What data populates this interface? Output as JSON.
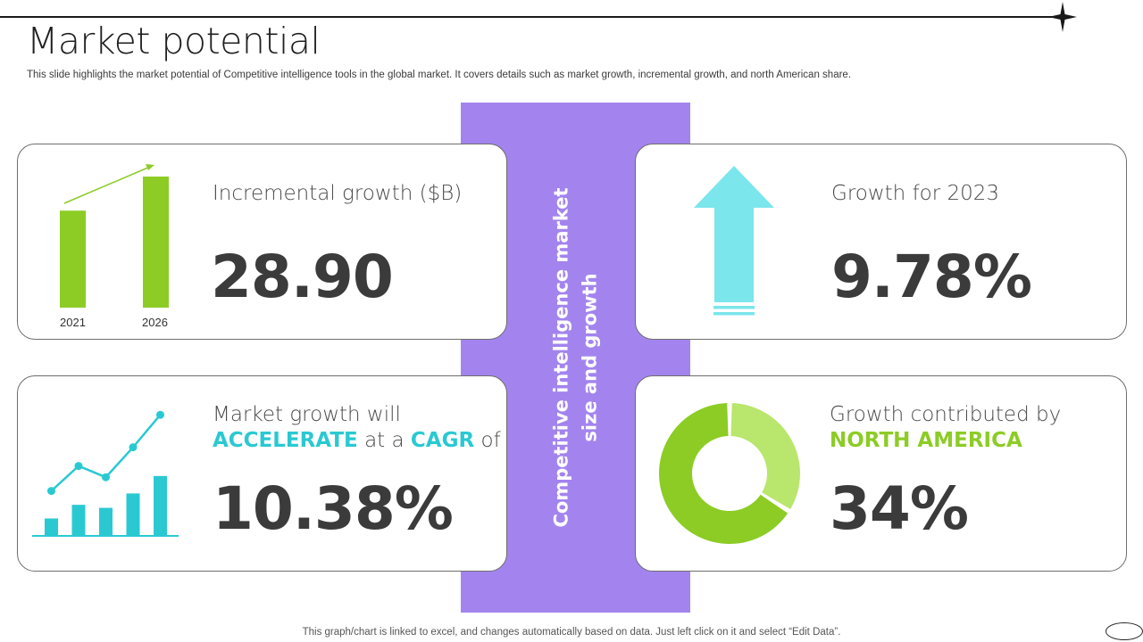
{
  "slide": {
    "title": "Market potential",
    "subtitle": "This slide highlights the market potential of Competitive intelligence tools in the global market. It covers details such as market growth, incremental growth, and north American share.",
    "footer": "This graph/chart is linked to excel,  and changes automatically based on data. Just left click on it and select “Edit Data”."
  },
  "center": {
    "line1": "Competitive intelligence market",
    "line2": "size and growth",
    "color": "#a384ee"
  },
  "incremental": {
    "label": "Incremental growth ($B)",
    "value": "28.90",
    "bar_color": "#8ccc25",
    "chart_data": {
      "type": "bar",
      "categories": [
        "2021",
        "2026"
      ],
      "values": [
        0.74,
        1.0
      ],
      "ylim": [
        0,
        1
      ]
    }
  },
  "growth2023": {
    "label": "Growth for 2023",
    "value": "9.78%",
    "icon": "up-arrow-icon",
    "color": "#7be6ec"
  },
  "cagr": {
    "label_line1": "Market growth will",
    "word_accelerate": "ACCELERATE",
    "word_at_a": "at a",
    "word_cagr": "CAGR",
    "word_of": "of",
    "value": "10.38%",
    "color": "#2ac9d2",
    "chart_data": {
      "type": "bar",
      "values": [
        0.23,
        0.41,
        0.37,
        0.56,
        0.79
      ],
      "line_values": [
        0.36,
        0.56,
        0.47,
        0.71,
        0.97
      ],
      "ylim": [
        0,
        1
      ]
    }
  },
  "north_america": {
    "label_line1": "Growth contributed by",
    "label_line2": "NORTH AMERICA",
    "value": "34%",
    "chart_data": {
      "type": "pie",
      "slices": [
        {
          "value": 34,
          "color": "#b9e66c"
        },
        {
          "value": 66,
          "color": "#8ccc25"
        }
      ]
    }
  }
}
